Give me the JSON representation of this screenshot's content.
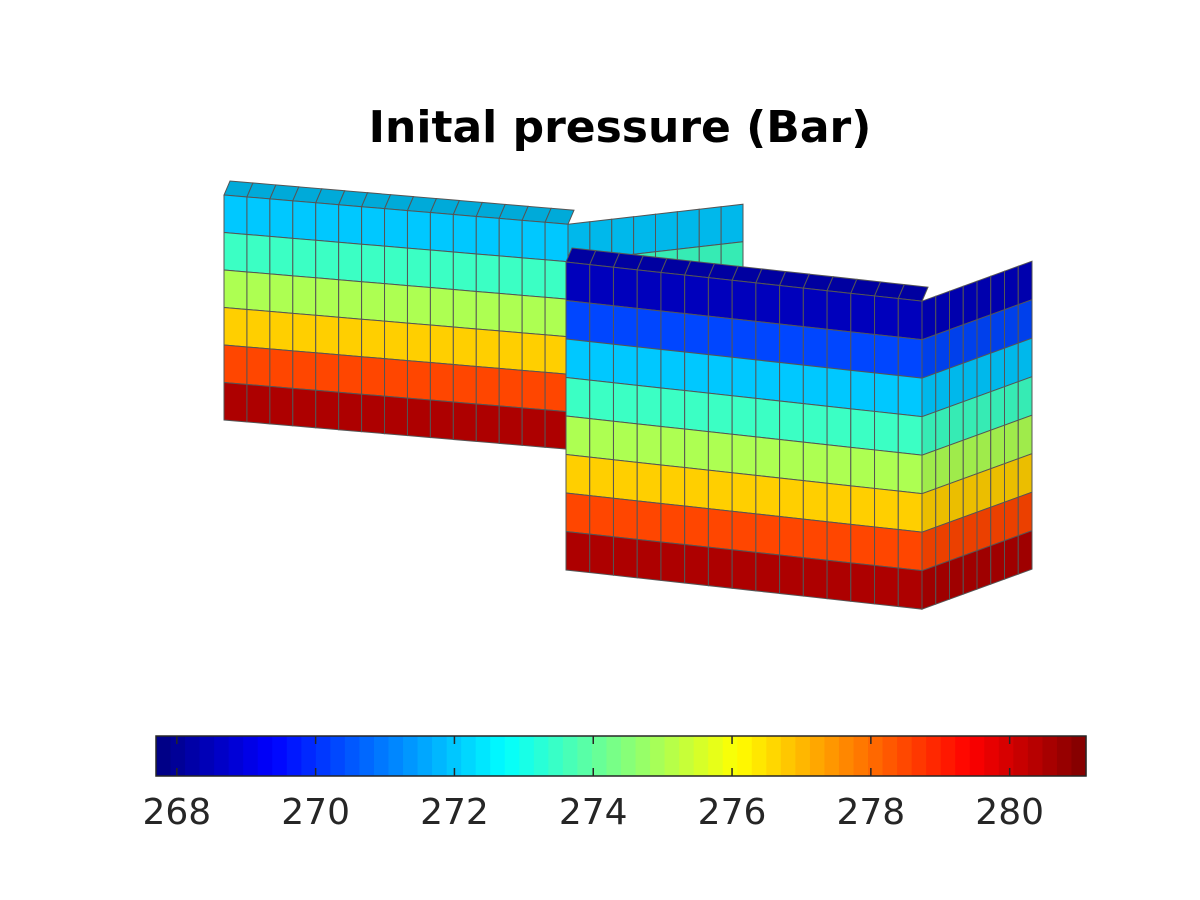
{
  "chart_data": {
    "type": "heatmap",
    "title": "Inital pressure (Bar)",
    "colormap": "jet",
    "colorbar": {
      "orientation": "horizontal",
      "location": "below plot",
      "range": [
        267.7,
        281.1
      ],
      "ticks": [
        268,
        270,
        272,
        274,
        276,
        278,
        280
      ],
      "tick_labels": [
        "268",
        "270",
        "272",
        "274",
        "276",
        "278",
        "280"
      ]
    },
    "layers": [
      {
        "layer": 1,
        "pressure": 268.5
      },
      {
        "layer": 2,
        "pressure": 270.3
      },
      {
        "layer": 3,
        "pressure": 272.0
      },
      {
        "layer": 4,
        "pressure": 273.5
      },
      {
        "layer": 5,
        "pressure": 275.0
      },
      {
        "layer": 6,
        "pressure": 276.7
      },
      {
        "layer": 7,
        "pressure": 278.5
      },
      {
        "layer": 8,
        "pressure": 280.5
      }
    ],
    "grid_edge_color": "#555555",
    "axes_visible": false
  }
}
